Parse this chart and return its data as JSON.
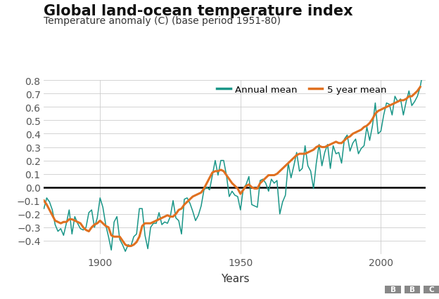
{
  "title": "Global land-ocean temperature index",
  "subtitle": "Temperature anomaly (C) (base period 1951-80)",
  "xlabel": "Years",
  "ylim": [
    -0.5,
    0.8
  ],
  "xlim": [
    1880,
    2016
  ],
  "xticks": [
    1900,
    1950,
    2000
  ],
  "yticks": [
    -0.4,
    -0.3,
    -0.2,
    -0.1,
    0.0,
    0.1,
    0.2,
    0.3,
    0.4,
    0.5,
    0.6,
    0.7,
    0.8
  ],
  "annual_color": "#1a9688",
  "five_year_color": "#e07020",
  "zero_line_color": "#000000",
  "background_color": "#ffffff",
  "grid_color": "#cccccc",
  "title_fontsize": 15,
  "subtitle_fontsize": 10,
  "axis_label_fontsize": 11,
  "tick_fontsize": 10,
  "legend_label_annual": "Annual mean",
  "legend_label_5yr": "5 year mean",
  "years": [
    1880,
    1881,
    1882,
    1883,
    1884,
    1885,
    1886,
    1887,
    1888,
    1889,
    1890,
    1891,
    1892,
    1893,
    1894,
    1895,
    1896,
    1897,
    1898,
    1899,
    1900,
    1901,
    1902,
    1903,
    1904,
    1905,
    1906,
    1907,
    1908,
    1909,
    1910,
    1911,
    1912,
    1913,
    1914,
    1915,
    1916,
    1917,
    1918,
    1919,
    1920,
    1921,
    1922,
    1923,
    1924,
    1925,
    1926,
    1927,
    1928,
    1929,
    1930,
    1931,
    1932,
    1933,
    1934,
    1935,
    1936,
    1937,
    1938,
    1939,
    1940,
    1941,
    1942,
    1943,
    1944,
    1945,
    1946,
    1947,
    1948,
    1949,
    1950,
    1951,
    1952,
    1953,
    1954,
    1955,
    1956,
    1957,
    1958,
    1959,
    1960,
    1961,
    1962,
    1963,
    1964,
    1965,
    1966,
    1967,
    1968,
    1969,
    1970,
    1971,
    1972,
    1973,
    1974,
    1975,
    1976,
    1977,
    1978,
    1979,
    1980,
    1981,
    1982,
    1983,
    1984,
    1985,
    1986,
    1987,
    1988,
    1989,
    1990,
    1991,
    1992,
    1993,
    1994,
    1995,
    1996,
    1997,
    1998,
    1999,
    2000,
    2001,
    2002,
    2003,
    2004,
    2005,
    2006,
    2007,
    2008,
    2009,
    2010,
    2011,
    2012,
    2013,
    2014,
    2015,
    2016
  ],
  "annual": [
    -0.16,
    -0.08,
    -0.11,
    -0.17,
    -0.28,
    -0.33,
    -0.31,
    -0.36,
    -0.27,
    -0.17,
    -0.35,
    -0.22,
    -0.27,
    -0.31,
    -0.32,
    -0.3,
    -0.19,
    -0.17,
    -0.3,
    -0.23,
    -0.08,
    -0.15,
    -0.28,
    -0.37,
    -0.47,
    -0.26,
    -0.22,
    -0.39,
    -0.43,
    -0.48,
    -0.43,
    -0.44,
    -0.37,
    -0.35,
    -0.16,
    -0.16,
    -0.36,
    -0.46,
    -0.3,
    -0.27,
    -0.27,
    -0.19,
    -0.28,
    -0.26,
    -0.27,
    -0.22,
    -0.1,
    -0.23,
    -0.25,
    -0.35,
    -0.09,
    -0.08,
    -0.12,
    -0.18,
    -0.25,
    -0.21,
    -0.14,
    -0.02,
    -0.0,
    -0.02,
    0.09,
    0.2,
    0.09,
    0.2,
    0.2,
    0.09,
    -0.07,
    -0.03,
    -0.06,
    -0.07,
    -0.17,
    -0.01,
    0.02,
    0.08,
    -0.13,
    -0.14,
    -0.15,
    0.05,
    0.06,
    0.03,
    -0.03,
    0.06,
    0.03,
    0.05,
    -0.2,
    -0.11,
    -0.06,
    0.18,
    0.07,
    0.16,
    0.26,
    0.12,
    0.14,
    0.31,
    0.16,
    0.12,
    -0.01,
    0.18,
    0.32,
    0.16,
    0.26,
    0.32,
    0.14,
    0.31,
    0.25,
    0.26,
    0.18,
    0.36,
    0.39,
    0.27,
    0.33,
    0.36,
    0.25,
    0.29,
    0.31,
    0.45,
    0.35,
    0.46,
    0.63,
    0.4,
    0.42,
    0.54,
    0.63,
    0.62,
    0.54,
    0.68,
    0.64,
    0.66,
    0.54,
    0.64,
    0.72,
    0.61,
    0.64,
    0.68,
    0.75,
    0.87,
    0.98
  ],
  "five_year": [
    -0.1,
    -0.13,
    -0.17,
    -0.21,
    -0.25,
    -0.26,
    -0.27,
    -0.26,
    -0.26,
    -0.24,
    -0.24,
    -0.25,
    -0.26,
    -0.27,
    -0.3,
    -0.32,
    -0.33,
    -0.3,
    -0.28,
    -0.27,
    -0.25,
    -0.27,
    -0.29,
    -0.3,
    -0.36,
    -0.37,
    -0.37,
    -0.37,
    -0.4,
    -0.43,
    -0.44,
    -0.44,
    -0.43,
    -0.41,
    -0.37,
    -0.29,
    -0.27,
    -0.27,
    -0.27,
    -0.26,
    -0.25,
    -0.24,
    -0.23,
    -0.22,
    -0.21,
    -0.22,
    -0.22,
    -0.2,
    -0.17,
    -0.16,
    -0.13,
    -0.11,
    -0.09,
    -0.07,
    -0.06,
    -0.05,
    -0.04,
    -0.01,
    0.03,
    0.07,
    0.11,
    0.12,
    0.12,
    0.13,
    0.12,
    0.09,
    0.06,
    0.03,
    0.01,
    -0.01,
    -0.05,
    -0.02,
    0.01,
    0.02,
    0.0,
    -0.01,
    -0.01,
    0.03,
    0.05,
    0.07,
    0.09,
    0.09,
    0.09,
    0.1,
    0.12,
    0.14,
    0.16,
    0.18,
    0.2,
    0.22,
    0.24,
    0.25,
    0.25,
    0.25,
    0.26,
    0.27,
    0.28,
    0.3,
    0.31,
    0.3,
    0.3,
    0.31,
    0.32,
    0.33,
    0.34,
    0.33,
    0.33,
    0.35,
    0.37,
    0.38,
    0.4,
    0.41,
    0.42,
    0.43,
    0.45,
    0.46,
    0.48,
    0.51,
    0.55,
    0.57,
    0.58,
    0.59,
    0.6,
    0.61,
    0.62,
    0.63,
    0.64,
    0.65,
    0.65,
    0.66,
    0.68,
    0.68,
    0.7,
    0.72,
    0.75,
    null,
    null
  ]
}
